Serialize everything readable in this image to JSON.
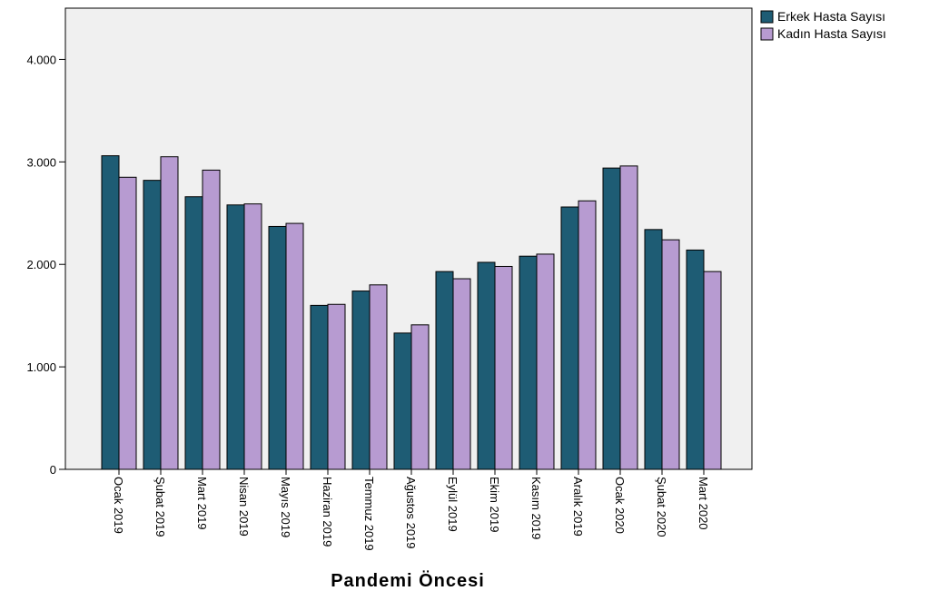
{
  "chart_data": {
    "type": "bar",
    "categories": [
      "Ocak 2019",
      "Şubat 2019",
      "Mart 2019",
      "Nisan 2019",
      "Mayıs 2019",
      "Haziran 2019",
      "Temmuz 2019",
      "Ağustos 2019",
      "Eylül 2019",
      "Ekim 2019",
      "Kasım 2019",
      "Aralık 2019",
      "Ocak 2020",
      "Şubat 2020",
      "Mart 2020"
    ],
    "series": [
      {
        "name": "Erkek Hasta Sayısı",
        "color": "#1e5c74",
        "values": [
          3060,
          2820,
          2660,
          2580,
          2370,
          1600,
          1740,
          1330,
          1930,
          2020,
          2080,
          2560,
          2940,
          2340,
          2140
        ]
      },
      {
        "name": "Kadın Hasta Sayısı",
        "color": "#b79bd1",
        "values": [
          2850,
          3050,
          2920,
          2590,
          2400,
          1610,
          1800,
          1410,
          1860,
          1980,
          2100,
          2620,
          2960,
          2240,
          1930
        ]
      }
    ],
    "xlabel": "Pandemi Öncesi",
    "ylabel": "",
    "ylim": [
      0,
      4500
    ],
    "yticks": [
      0,
      1000,
      2000,
      3000,
      4000
    ],
    "ytick_labels": [
      "0",
      "1.000",
      "2.000",
      "3.000",
      "4.000"
    ],
    "grid": false,
    "legend_position": "top-right",
    "plot_background": "#f0f0f0"
  }
}
